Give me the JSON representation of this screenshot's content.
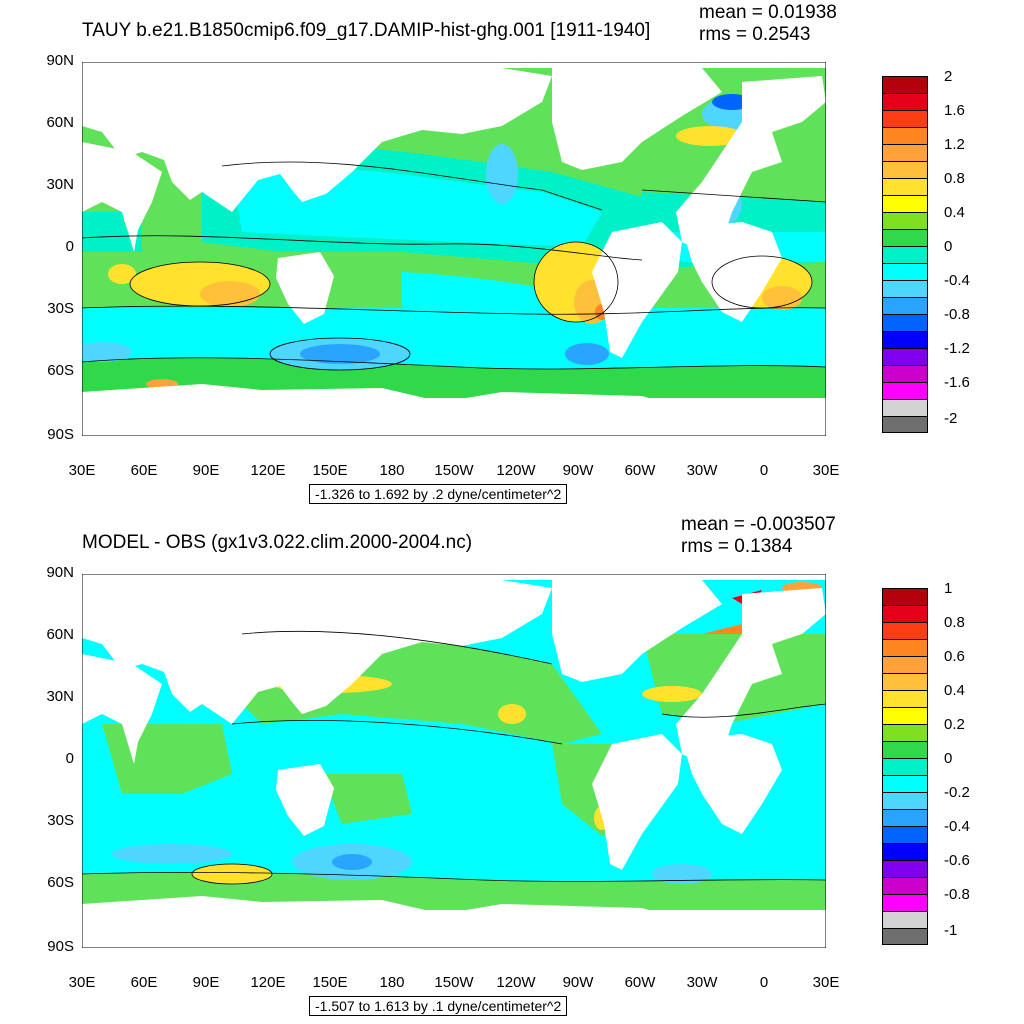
{
  "panels": [
    {
      "id": "top",
      "title": "TAUY b.e21.B1850cmip6.f09_g17.DAMIP-hist-ghg.001 [1911-1940]",
      "mean": "mean = 0.01938",
      "rms": "rms = 0.2543",
      "contour_info": "-1.326 to 1.692 by .2 dyne/centimeter^2",
      "colorbar_labels": [
        "2",
        "1.6",
        "1.2",
        "0.8",
        "0.4",
        "0",
        "-0.4",
        "-0.8",
        "-1.2",
        "-1.6",
        "-2"
      ],
      "colorbar_colors": [
        "#b4000a",
        "#e4001c",
        "#ff3d14",
        "#ff8520",
        "#ffa23c",
        "#ffc03a",
        "#ffe12e",
        "#ffff00",
        "#7fe01f",
        "#2fd949",
        "#00f0c8",
        "#00ffff",
        "#4fd6ff",
        "#29a5ff",
        "#0064ff",
        "#0000ff",
        "#7e00ee",
        "#cc00cc",
        "#ff00ff",
        "#d3d3d3",
        "#6e6e6e"
      ]
    },
    {
      "id": "bottom",
      "title": "MODEL - OBS (gx1v3.022.clim.2000-2004.nc)",
      "mean": "mean = -0.003507",
      "rms": "rms = 0.1384",
      "contour_info": "-1.507 to 1.613 by .1 dyne/centimeter^2",
      "colorbar_labels": [
        "1",
        "0.8",
        "0.6",
        "0.4",
        "0.2",
        "0",
        "-0.2",
        "-0.4",
        "-0.6",
        "-0.8",
        "-1"
      ],
      "colorbar_colors": [
        "#b4000a",
        "#e4001c",
        "#ff3d14",
        "#ff8520",
        "#ffa23c",
        "#ffc03a",
        "#ffe12e",
        "#ffff00",
        "#7fe01f",
        "#2fd949",
        "#00f0c8",
        "#00ffff",
        "#4fd6ff",
        "#29a5ff",
        "#0064ff",
        "#0000ff",
        "#7e00ee",
        "#cc00cc",
        "#ff00ff",
        "#d3d3d3",
        "#6e6e6e"
      ]
    }
  ],
  "axes": {
    "lat_labels": [
      "90N",
      "60N",
      "30N",
      "0",
      "30S",
      "60S",
      "90S"
    ],
    "lon_labels": [
      "30E",
      "60E",
      "90E",
      "120E",
      "150E",
      "180",
      "150W",
      "120W",
      "90W",
      "60W",
      "30W",
      "0",
      "30E"
    ]
  },
  "colors": {
    "land": "#ffffff",
    "ocean_base": "#5fe25a",
    "contour": "#000000"
  }
}
